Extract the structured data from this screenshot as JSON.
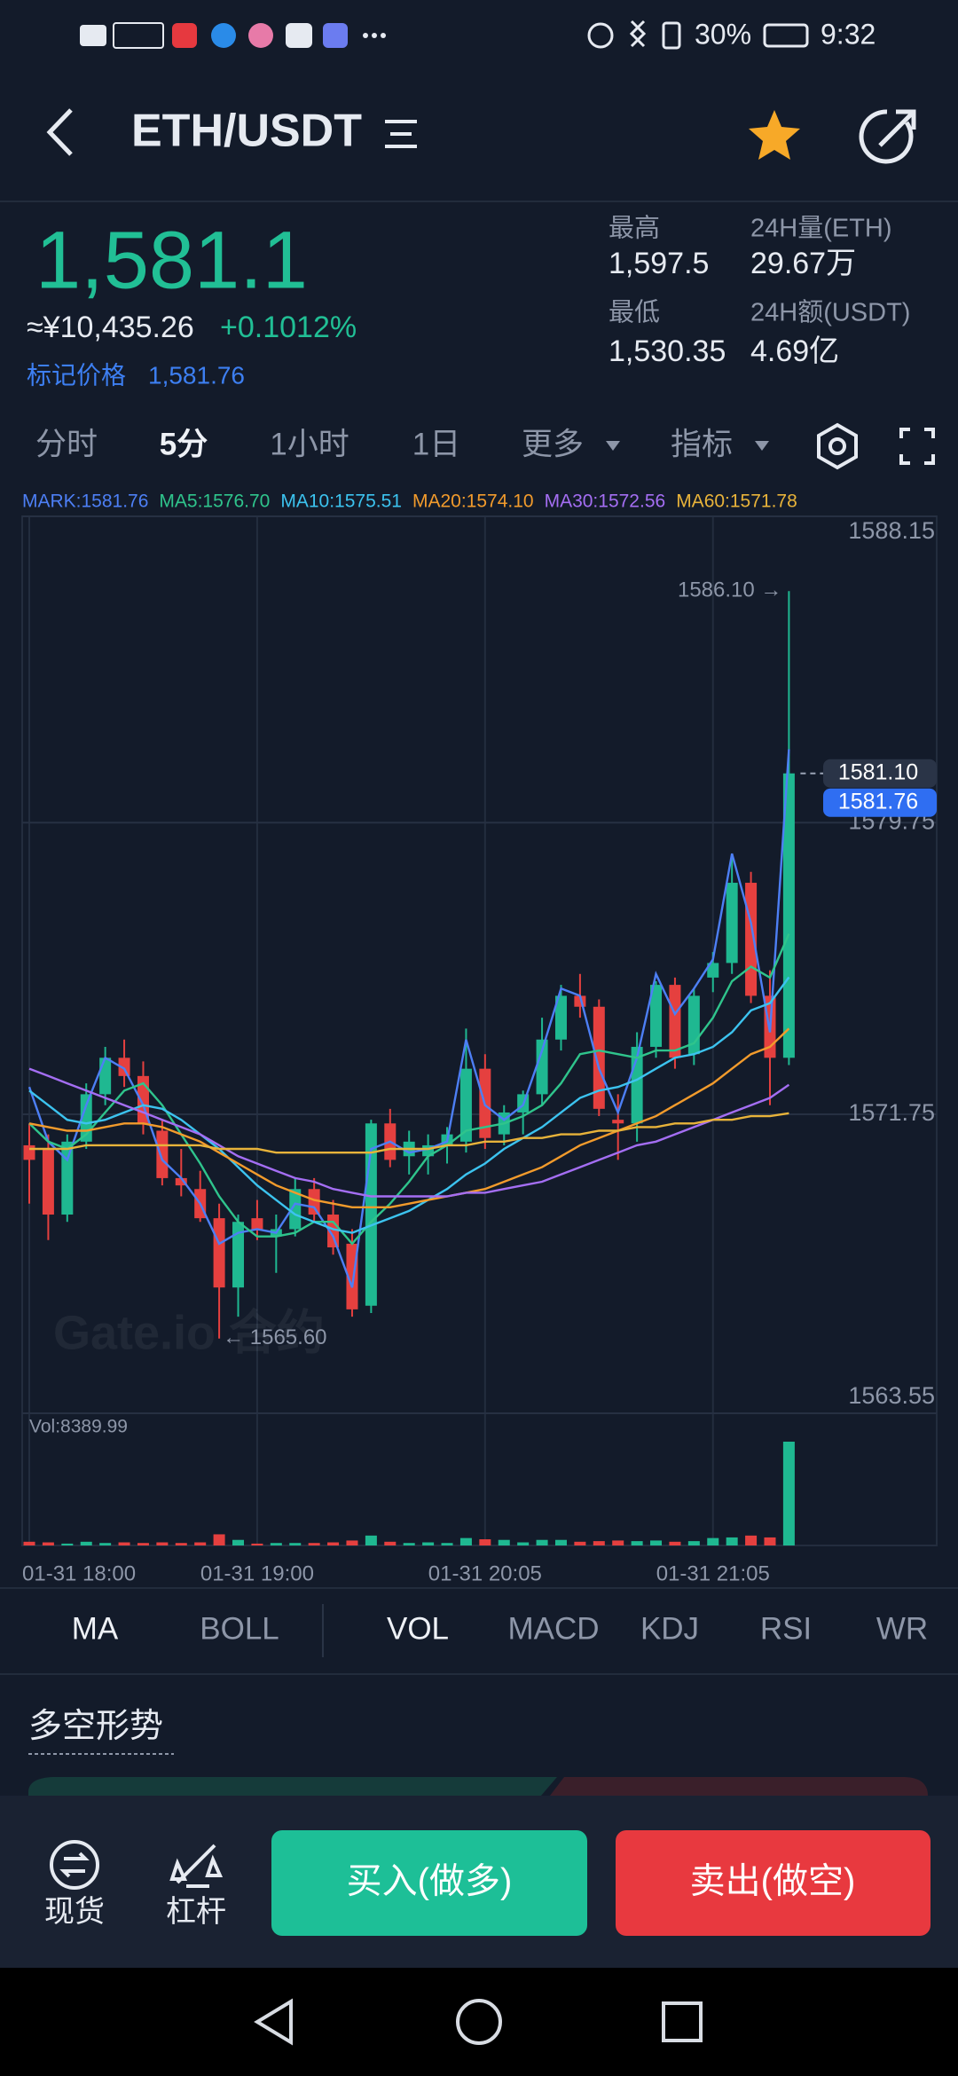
{
  "status_bar": {
    "battery": "30%",
    "time": "9:32"
  },
  "header": {
    "title": "ETH/USDT"
  },
  "ticker": {
    "price": "1,581.1",
    "cny": "≈¥10,435.26",
    "change": "+0.1012%",
    "mark_label": "标记价格",
    "mark_price": "1,581.76",
    "stats": [
      {
        "label": "最高",
        "value": "1,597.5"
      },
      {
        "label": "24H量(ETH)",
        "value": "29.67万"
      },
      {
        "label": "最低",
        "value": "1,530.35"
      },
      {
        "label": "24H额(USDT)",
        "value": "4.69亿"
      }
    ]
  },
  "timeframes": [
    "分时",
    "5分",
    "1小时",
    "1日",
    "更多",
    "指标"
  ],
  "indicator_tabs": [
    "MA",
    "BOLL",
    "VOL",
    "MACD",
    "KDJ",
    "RSI",
    "WR"
  ],
  "section_title": "多空形势",
  "watermark": "Gate.io 合约",
  "actions": {
    "spot": "现货",
    "leverage": "杠杆",
    "buy": "买入(做多)",
    "sell": "卖出(做空)"
  },
  "chart_data": {
    "type": "candlestick",
    "categories": [
      "01-31 18:00",
      null,
      null,
      null,
      null,
      null,
      null,
      null,
      null,
      null,
      null,
      null,
      "01-31 19:00",
      null,
      null,
      null,
      null,
      null,
      null,
      null,
      null,
      null,
      null,
      null,
      "01-31 20:05",
      null,
      null,
      null,
      null,
      null,
      null,
      null,
      null,
      null,
      null,
      null,
      "01-31 21:05",
      null,
      null,
      null,
      null
    ],
    "open": [
      1570.9,
      1570.8,
      1569.0,
      1571.0,
      1572.3,
      1573.3,
      1572.8,
      1571.3,
      1570.0,
      1569.7,
      1568.9,
      1567.0,
      1568.9,
      1568.4,
      1568.6,
      1569.7,
      1569.0,
      1568.2,
      1566.5,
      1571.5,
      1570.6,
      1570.6,
      1570.9,
      1571.0,
      1573.0,
      1571.2,
      1571.8,
      1572.3,
      1573.8,
      1575.0,
      1574.7,
      1571.6,
      1571.5,
      1573.6,
      1575.3,
      1573.4,
      1575.5,
      1575.9,
      1578.1,
      1575.0,
      1573.3
    ],
    "high": [
      1571.5,
      1571.2,
      1571.2,
      1572.6,
      1573.6,
      1573.8,
      1573.2,
      1571.6,
      1570.8,
      1570.2,
      1569.3,
      1569.0,
      1569.4,
      1569.0,
      1570.0,
      1570.0,
      1569.4,
      1568.6,
      1571.6,
      1571.9,
      1571.3,
      1571.2,
      1571.4,
      1574.1,
      1573.4,
      1572.0,
      1572.4,
      1574.4,
      1575.3,
      1575.6,
      1574.9,
      1572.3,
      1574.0,
      1575.4,
      1575.5,
      1575.2,
      1576.2,
      1578.8,
      1578.4,
      1575.7,
      1586.1
    ],
    "low": [
      1569.3,
      1568.3,
      1568.8,
      1570.8,
      1572.0,
      1572.5,
      1571.2,
      1569.8,
      1569.5,
      1568.8,
      1565.6,
      1566.2,
      1568.3,
      1567.4,
      1568.4,
      1568.8,
      1567.9,
      1566.2,
      1566.3,
      1570.3,
      1570.1,
      1570.1,
      1570.4,
      1570.7,
      1570.8,
      1570.9,
      1571.2,
      1572.0,
      1573.5,
      1574.4,
      1571.7,
      1570.5,
      1571.0,
      1573.3,
      1573.0,
      1573.1,
      1575.1,
      1575.6,
      1574.8,
      1572.0,
      1573.1
    ],
    "close": [
      1570.5,
      1569.0,
      1571.0,
      1572.3,
      1573.3,
      1572.8,
      1571.5,
      1570.0,
      1569.8,
      1568.9,
      1567.0,
      1568.8,
      1568.6,
      1568.6,
      1569.7,
      1569.0,
      1568.1,
      1566.4,
      1571.5,
      1570.5,
      1571.0,
      1570.9,
      1571.2,
      1573.0,
      1571.1,
      1571.8,
      1572.3,
      1573.8,
      1575.0,
      1574.7,
      1571.9,
      1571.5,
      1573.6,
      1575.3,
      1573.3,
      1575.0,
      1575.9,
      1578.1,
      1575.0,
      1573.3,
      1581.1
    ],
    "up_color": "#1fb891",
    "down_color": "#e5403f",
    "ylim": [
      1563.55,
      1588.15
    ],
    "yticks": [
      1563.55,
      1571.75,
      1579.75,
      1588.15
    ],
    "grid": true,
    "lines": [
      {
        "name": "MARK:1581.76",
        "color": "#4d7ff5",
        "values": [
          1572.5,
          1571.0,
          1570.5,
          1572.0,
          1573.3,
          1573.0,
          1572.0,
          1570.5,
          1570.0,
          1569.3,
          1568.2,
          1568.5,
          1568.6,
          1568.5,
          1569.3,
          1569.2,
          1568.4,
          1567.0,
          1570.8,
          1571.0,
          1570.7,
          1570.8,
          1571.0,
          1573.8,
          1572.0,
          1571.6,
          1572.0,
          1573.5,
          1575.2,
          1575.0,
          1573.0,
          1571.8,
          1573.3,
          1575.6,
          1574.5,
          1575.2,
          1576.0,
          1578.9,
          1577.0,
          1574.0,
          1581.76
        ]
      },
      {
        "name": "MA5:1576.70",
        "color": "#2fc48c",
        "values": [
          1571.5,
          1571.0,
          1570.8,
          1571.2,
          1571.8,
          1572.4,
          1572.6,
          1572.0,
          1571.2,
          1570.4,
          1569.5,
          1568.8,
          1568.4,
          1568.4,
          1568.5,
          1568.8,
          1568.8,
          1568.2,
          1568.8,
          1569.3,
          1569.9,
          1570.6,
          1570.9,
          1571.3,
          1571.4,
          1571.5,
          1571.7,
          1572.0,
          1572.6,
          1573.4,
          1573.5,
          1573.4,
          1573.3,
          1573.5,
          1573.5,
          1573.7,
          1574.4,
          1575.4,
          1575.8,
          1575.5,
          1576.7
        ]
      },
      {
        "name": "MA10:1575.51",
        "color": "#3cc3ef",
        "values": [
          1572.4,
          1572.0,
          1571.6,
          1571.5,
          1571.6,
          1571.8,
          1572.0,
          1571.9,
          1571.6,
          1571.2,
          1570.8,
          1570.3,
          1569.8,
          1569.4,
          1569.0,
          1568.8,
          1568.6,
          1568.5,
          1568.7,
          1568.9,
          1569.1,
          1569.4,
          1569.7,
          1570.1,
          1570.4,
          1570.8,
          1571.1,
          1571.4,
          1571.8,
          1572.2,
          1572.4,
          1572.5,
          1572.7,
          1573.0,
          1573.3,
          1573.4,
          1573.6,
          1574.0,
          1574.6,
          1574.8,
          1575.51
        ]
      },
      {
        "name": "MA20:1574.10",
        "color": "#f29b2c",
        "values": [
          1571.5,
          1571.4,
          1571.3,
          1571.3,
          1571.4,
          1571.5,
          1571.5,
          1571.4,
          1571.2,
          1571.0,
          1570.7,
          1570.4,
          1570.1,
          1569.8,
          1569.6,
          1569.4,
          1569.3,
          1569.2,
          1569.2,
          1569.2,
          1569.3,
          1569.4,
          1569.5,
          1569.6,
          1569.7,
          1569.9,
          1570.1,
          1570.3,
          1570.6,
          1570.9,
          1571.1,
          1571.3,
          1571.5,
          1571.7,
          1572.0,
          1572.3,
          1572.6,
          1573.0,
          1573.4,
          1573.6,
          1574.1
        ]
      },
      {
        "name": "MA30:1572.56",
        "color": "#a46ef3",
        "values": [
          1573.0,
          1572.8,
          1572.6,
          1572.4,
          1572.2,
          1572.0,
          1571.8,
          1571.6,
          1571.4,
          1571.2,
          1570.9,
          1570.6,
          1570.4,
          1570.2,
          1570.0,
          1569.9,
          1569.7,
          1569.6,
          1569.5,
          1569.5,
          1569.5,
          1569.5,
          1569.5,
          1569.6,
          1569.6,
          1569.7,
          1569.8,
          1569.9,
          1570.1,
          1570.3,
          1570.5,
          1570.7,
          1570.9,
          1571.0,
          1571.2,
          1571.4,
          1571.6,
          1571.8,
          1572.0,
          1572.2,
          1572.56
        ]
      },
      {
        "name": "MA60:1571.78",
        "color": "#e8b33a",
        "values": [
          1570.8,
          1570.8,
          1570.8,
          1570.9,
          1570.9,
          1570.9,
          1570.9,
          1570.9,
          1570.9,
          1570.9,
          1570.8,
          1570.8,
          1570.8,
          1570.7,
          1570.7,
          1570.7,
          1570.7,
          1570.7,
          1570.7,
          1570.8,
          1570.8,
          1570.8,
          1570.9,
          1570.9,
          1571.0,
          1571.0,
          1571.1,
          1571.1,
          1571.2,
          1571.2,
          1571.3,
          1571.3,
          1571.4,
          1571.4,
          1571.5,
          1571.5,
          1571.6,
          1571.6,
          1571.7,
          1571.7,
          1571.78
        ]
      }
    ],
    "annotations": {
      "high": {
        "value": 1586.1,
        "label": "1586.10 →"
      },
      "low": {
        "value": 1565.6,
        "label": "← 1565.60"
      }
    },
    "price_tags": [
      {
        "value": 1581.1,
        "label": "1581.10",
        "color": "#2a3447"
      },
      {
        "value": 1581.76,
        "color": "#2f6ef2"
      }
    ],
    "volume": {
      "label": "Vol:8389.99",
      "values": [
        300,
        250,
        150,
        300,
        200,
        250,
        200,
        250,
        200,
        250,
        900,
        450,
        150,
        200,
        200,
        200,
        250,
        400,
        800,
        300,
        200,
        250,
        200,
        600,
        500,
        450,
        250,
        450,
        450,
        300,
        350,
        400,
        350,
        400,
        300,
        350,
        600,
        650,
        800,
        650,
        8389.99
      ]
    }
  }
}
